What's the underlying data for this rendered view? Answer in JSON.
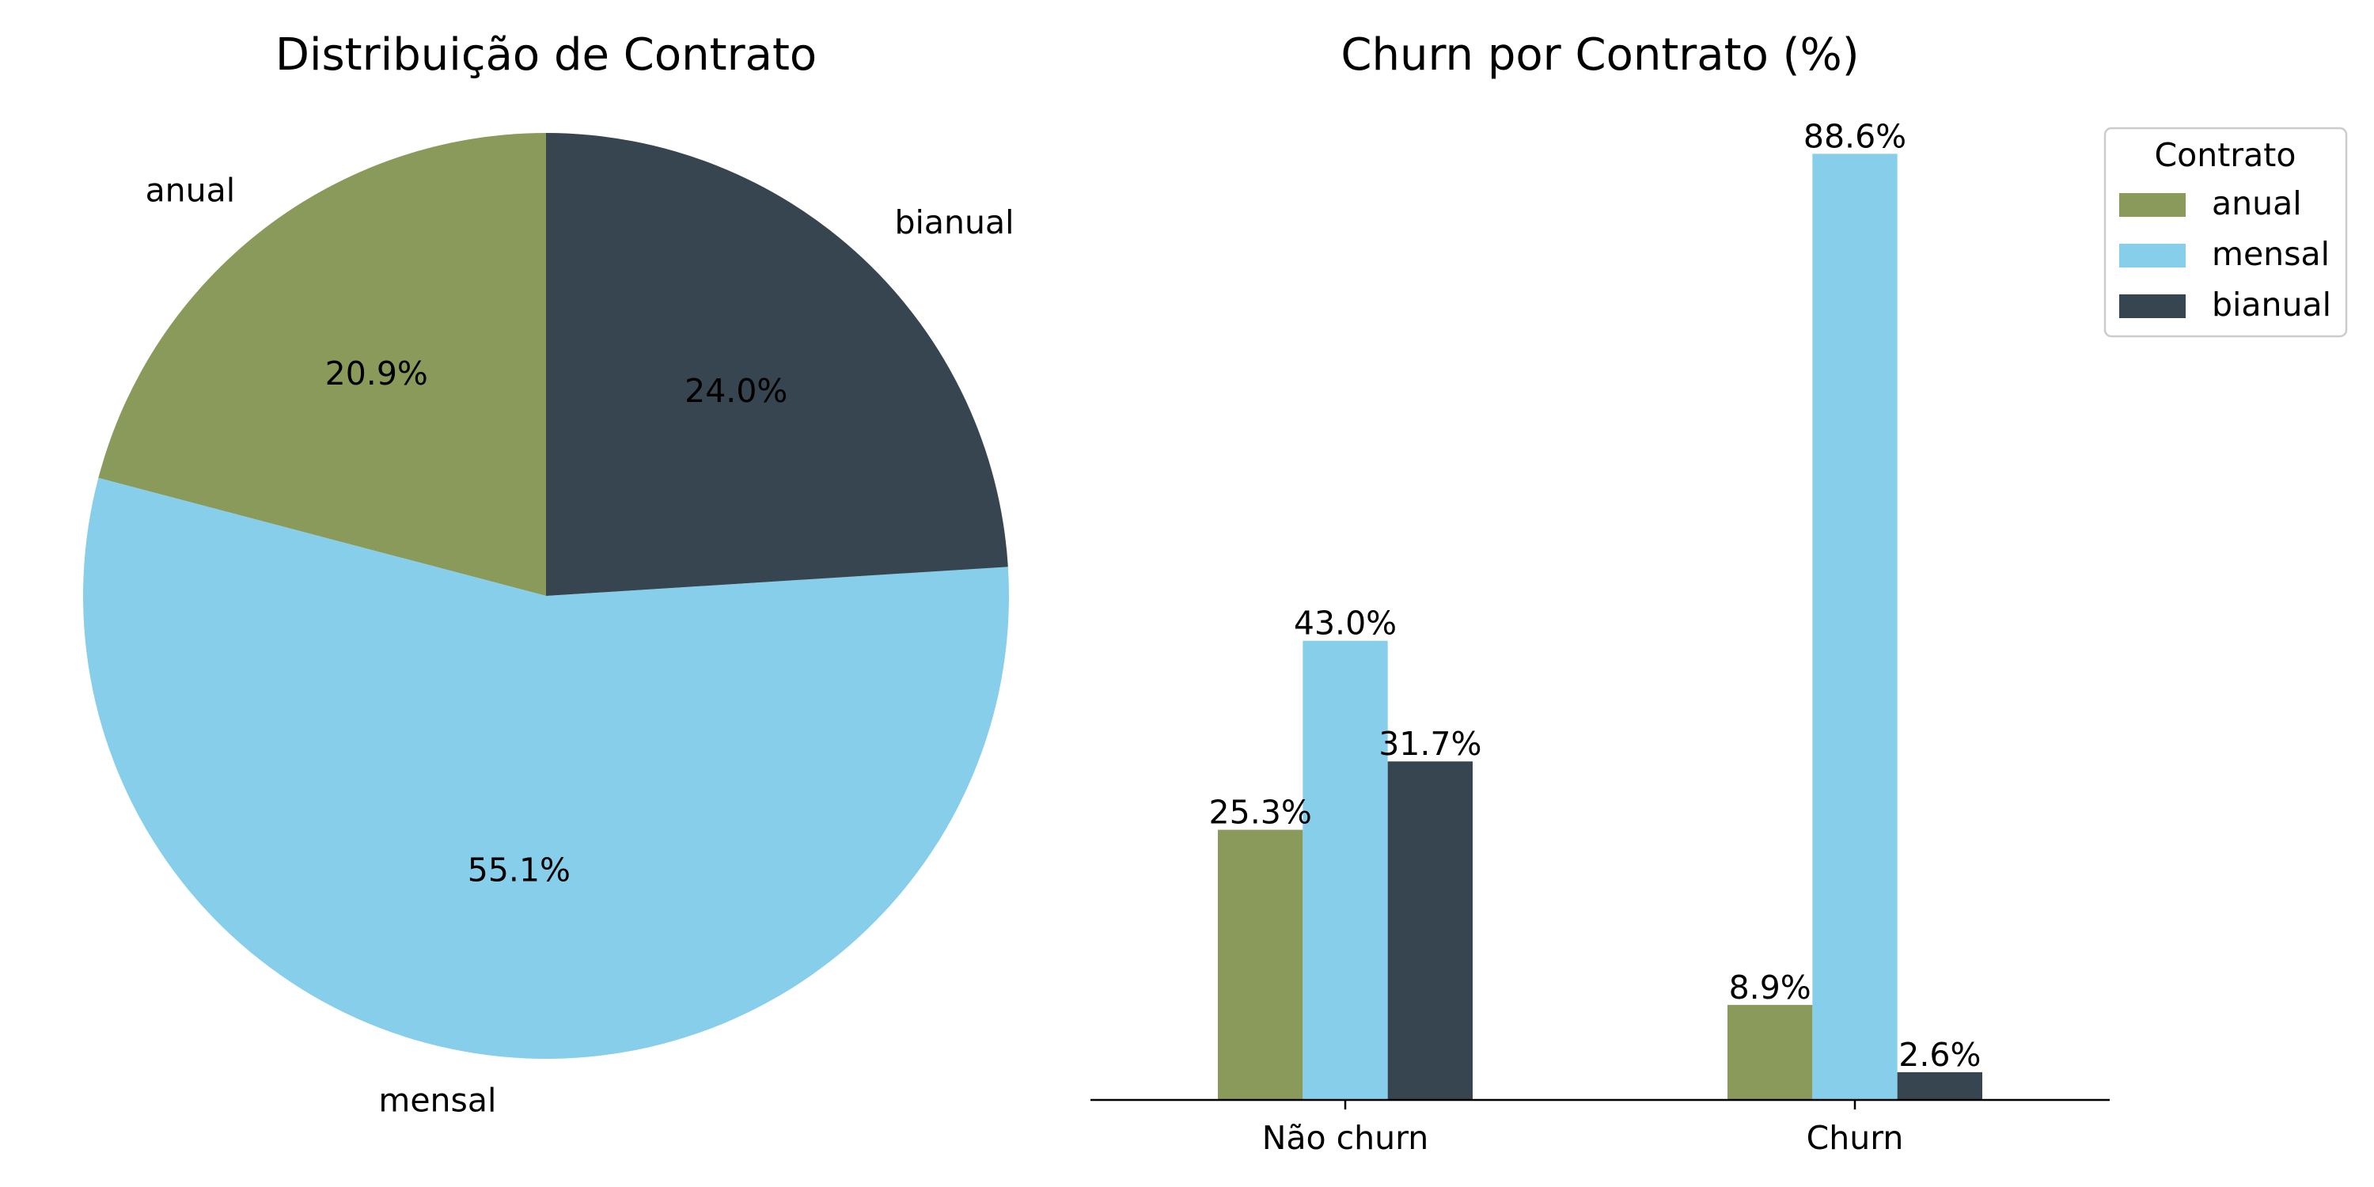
{
  "chart_data": [
    {
      "type": "pie",
      "title": "Distribuição de Contrato",
      "slices": [
        {
          "label": "anual",
          "value": 20.9,
          "value_label": "20.9%",
          "color": "#8a9a5b"
        },
        {
          "label": "mensal",
          "value": 55.1,
          "value_label": "55.1%",
          "color": "#87ceeb"
        },
        {
          "label": "bianual",
          "value": 24.0,
          "value_label": "24.0%",
          "color": "#36454f"
        }
      ],
      "start_angle": 90,
      "direction": "counterclockwise"
    },
    {
      "type": "bar",
      "title": "Churn por Contrato (%)",
      "categories": [
        "Não churn",
        "Churn"
      ],
      "series": [
        {
          "name": "anual",
          "values": [
            25.3,
            8.9
          ],
          "value_labels": [
            "25.3%",
            "8.9%"
          ],
          "color": "#8a9a5b"
        },
        {
          "name": "mensal",
          "values": [
            43.0,
            88.6
          ],
          "value_labels": [
            "43.0%",
            "88.6%"
          ],
          "color": "#87ceeb"
        },
        {
          "name": "bianual",
          "values": [
            31.7,
            2.6
          ],
          "value_labels": [
            "31.7%",
            "2.6%"
          ],
          "color": "#36454f"
        }
      ],
      "legend": {
        "title": "Contrato",
        "position": "top-right-outside"
      },
      "ylim": [
        0,
        93.0
      ],
      "grid": false,
      "yaxis_visible": false
    }
  ]
}
